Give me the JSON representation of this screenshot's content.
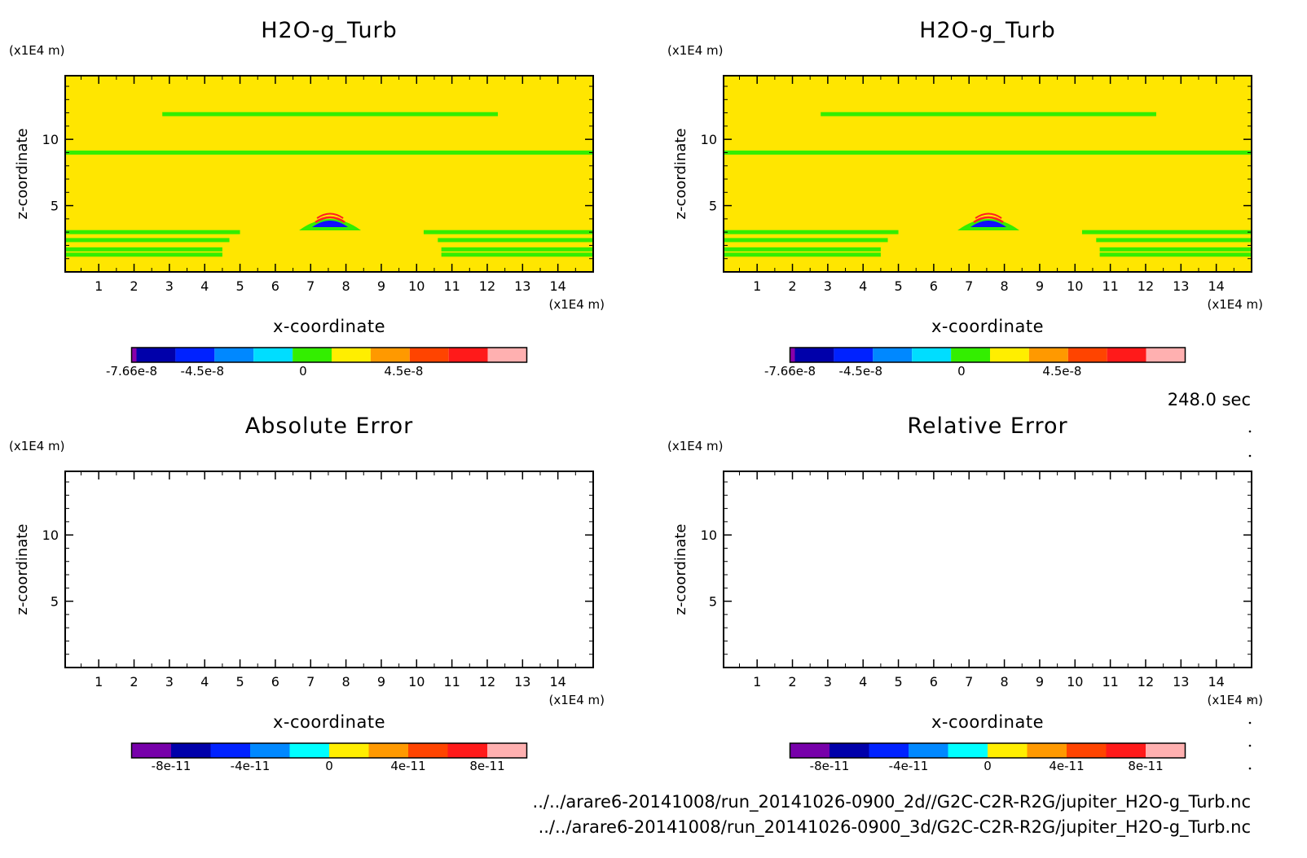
{
  "figure": {
    "time_label": "248.0 sec",
    "file_paths": [
      "../../arare6-20141008/run_20141026-0900_2d//G2C-C2R-R2G/jupiter_H2O-g_Turb.nc",
      "../../arare6-20141008/run_20141026-0900_3d/G2C-C2R-R2G/jupiter_H2O-g_Turb.nc"
    ]
  },
  "colors": {
    "background_field": "#ffe600",
    "green_contour": "#33ee00",
    "positive_anomaly": "#ff2020",
    "negative_anomaly": "#1010ff",
    "error_field": "#ffffff"
  },
  "chart_data": [
    {
      "type": "heatmap",
      "title": "H2O-g_Turb",
      "xlabel": "x-coordinate",
      "ylabel": "z-coordinate",
      "x_unit": "(x1E4 m)",
      "y_unit": "(x1E4 m)",
      "x_ticks": [
        1,
        2,
        3,
        4,
        5,
        6,
        7,
        8,
        9,
        10,
        11,
        12,
        13,
        14
      ],
      "y_ticks": [
        5,
        10
      ],
      "xlim": [
        0.05,
        15.0
      ],
      "ylim": [
        0.0,
        14.8
      ],
      "features": {
        "green_bands": [
          {
            "z": 11.9,
            "x_start": 2.8,
            "x_end": 12.3
          },
          {
            "z": 9.0,
            "x_start": 0.05,
            "x_end": 15.0
          },
          {
            "z": 3.0,
            "x_start": 0.05,
            "x_end": 5.0
          },
          {
            "z": 2.4,
            "x_start": 0.05,
            "x_end": 4.7
          },
          {
            "z": 1.7,
            "x_start": 0.05,
            "x_end": 4.5
          },
          {
            "z": 1.3,
            "x_start": 0.05,
            "x_end": 4.5
          },
          {
            "z": 3.0,
            "x_start": 10.2,
            "x_end": 15.0
          },
          {
            "z": 2.4,
            "x_start": 10.6,
            "x_end": 15.0
          },
          {
            "z": 1.7,
            "x_start": 10.7,
            "x_end": 15.0
          },
          {
            "z": 1.3,
            "x_start": 10.7,
            "x_end": 15.0
          }
        ],
        "bubble": {
          "x": 7.55,
          "z": 3.5
        }
      },
      "colorbar": {
        "colors": [
          "#8800aa",
          "#0000aa",
          "#0022ff",
          "#0088ff",
          "#00ddff",
          "#33ee00",
          "#ffee00",
          "#ff9900",
          "#ff4400",
          "#ff1a1a",
          "#ffb0b0"
        ],
        "tick_labels": [
          "-7.66e-8",
          "-4.5e-8",
          "0",
          "4.5e-8"
        ],
        "tick_values": [
          -7.66e-08,
          -4.5e-08,
          0,
          4.5e-08
        ],
        "range": [
          -7.66e-08,
          1e-07
        ]
      }
    },
    {
      "type": "heatmap",
      "title": "H2O-g_Turb",
      "xlabel": "x-coordinate",
      "ylabel": "z-coordinate",
      "x_unit": "(x1E4 m)",
      "y_unit": "(x1E4 m)",
      "x_ticks": [
        1,
        2,
        3,
        4,
        5,
        6,
        7,
        8,
        9,
        10,
        11,
        12,
        13,
        14
      ],
      "y_ticks": [
        5,
        10
      ],
      "xlim": [
        0.05,
        15.0
      ],
      "ylim": [
        0.0,
        14.8
      ],
      "features": {
        "green_bands": [
          {
            "z": 11.9,
            "x_start": 2.8,
            "x_end": 12.3
          },
          {
            "z": 9.0,
            "x_start": 0.05,
            "x_end": 15.0
          },
          {
            "z": 3.0,
            "x_start": 0.05,
            "x_end": 5.0
          },
          {
            "z": 2.4,
            "x_start": 0.05,
            "x_end": 4.7
          },
          {
            "z": 1.7,
            "x_start": 0.05,
            "x_end": 4.5
          },
          {
            "z": 1.3,
            "x_start": 0.05,
            "x_end": 4.5
          },
          {
            "z": 3.0,
            "x_start": 10.2,
            "x_end": 15.0
          },
          {
            "z": 2.4,
            "x_start": 10.6,
            "x_end": 15.0
          },
          {
            "z": 1.7,
            "x_start": 10.7,
            "x_end": 15.0
          },
          {
            "z": 1.3,
            "x_start": 10.7,
            "x_end": 15.0
          }
        ],
        "bubble": {
          "x": 7.55,
          "z": 3.5
        }
      },
      "colorbar": {
        "colors": [
          "#8800aa",
          "#0000aa",
          "#0022ff",
          "#0088ff",
          "#00ddff",
          "#33ee00",
          "#ffee00",
          "#ff9900",
          "#ff4400",
          "#ff1a1a",
          "#ffb0b0"
        ],
        "tick_labels": [
          "-7.66e-8",
          "-4.5e-8",
          "0",
          "4.5e-8"
        ],
        "tick_values": [
          -7.66e-08,
          -4.5e-08,
          0,
          4.5e-08
        ],
        "range": [
          -7.66e-08,
          1e-07
        ]
      }
    },
    {
      "type": "heatmap",
      "title": "Absolute Error",
      "xlabel": "x-coordinate",
      "ylabel": "z-coordinate",
      "x_unit": "(x1E4 m)",
      "y_unit": "(x1E4 m)",
      "x_ticks": [
        1,
        2,
        3,
        4,
        5,
        6,
        7,
        8,
        9,
        10,
        11,
        12,
        13,
        14
      ],
      "y_ticks": [
        5,
        10
      ],
      "xlim": [
        0.05,
        15.0
      ],
      "ylim": [
        0.0,
        14.8
      ],
      "features": {
        "green_bands": [],
        "bubble": null
      },
      "colorbar": {
        "colors": [
          "#7700aa",
          "#0000aa",
          "#0022ff",
          "#0088ff",
          "#00ffff",
          "#ffee00",
          "#ff9900",
          "#ff4400",
          "#ff1a1a",
          "#ffb0b0"
        ],
        "tick_labels": [
          "-8e-11",
          "-4e-11",
          "0",
          "4e-11",
          "8e-11"
        ],
        "tick_values": [
          -8e-11,
          -4e-11,
          0,
          4e-11,
          8e-11
        ],
        "range": [
          -1e-10,
          1e-10
        ]
      }
    },
    {
      "type": "heatmap",
      "title": "Relative Error",
      "xlabel": "x-coordinate",
      "ylabel": "z-coordinate",
      "x_unit": "(x1E4 m)",
      "y_unit": "(x1E4 m)",
      "x_ticks": [
        1,
        2,
        3,
        4,
        5,
        6,
        7,
        8,
        9,
        10,
        11,
        12,
        13,
        14
      ],
      "y_ticks": [
        5,
        10
      ],
      "xlim": [
        0.05,
        15.0
      ],
      "ylim": [
        0.0,
        14.8
      ],
      "features": {
        "green_bands": [],
        "bubble": null
      },
      "colorbar": {
        "colors": [
          "#7700aa",
          "#0000aa",
          "#0022ff",
          "#0088ff",
          "#00ffff",
          "#ffee00",
          "#ff9900",
          "#ff4400",
          "#ff1a1a",
          "#ffb0b0"
        ],
        "tick_labels": [
          "-8e-11",
          "-4e-11",
          "0",
          "4e-11",
          "8e-11"
        ],
        "tick_values": [
          -8e-11,
          -4e-11,
          0,
          4e-11,
          8e-11
        ],
        "range": [
          -1e-10,
          1e-10
        ]
      }
    }
  ]
}
